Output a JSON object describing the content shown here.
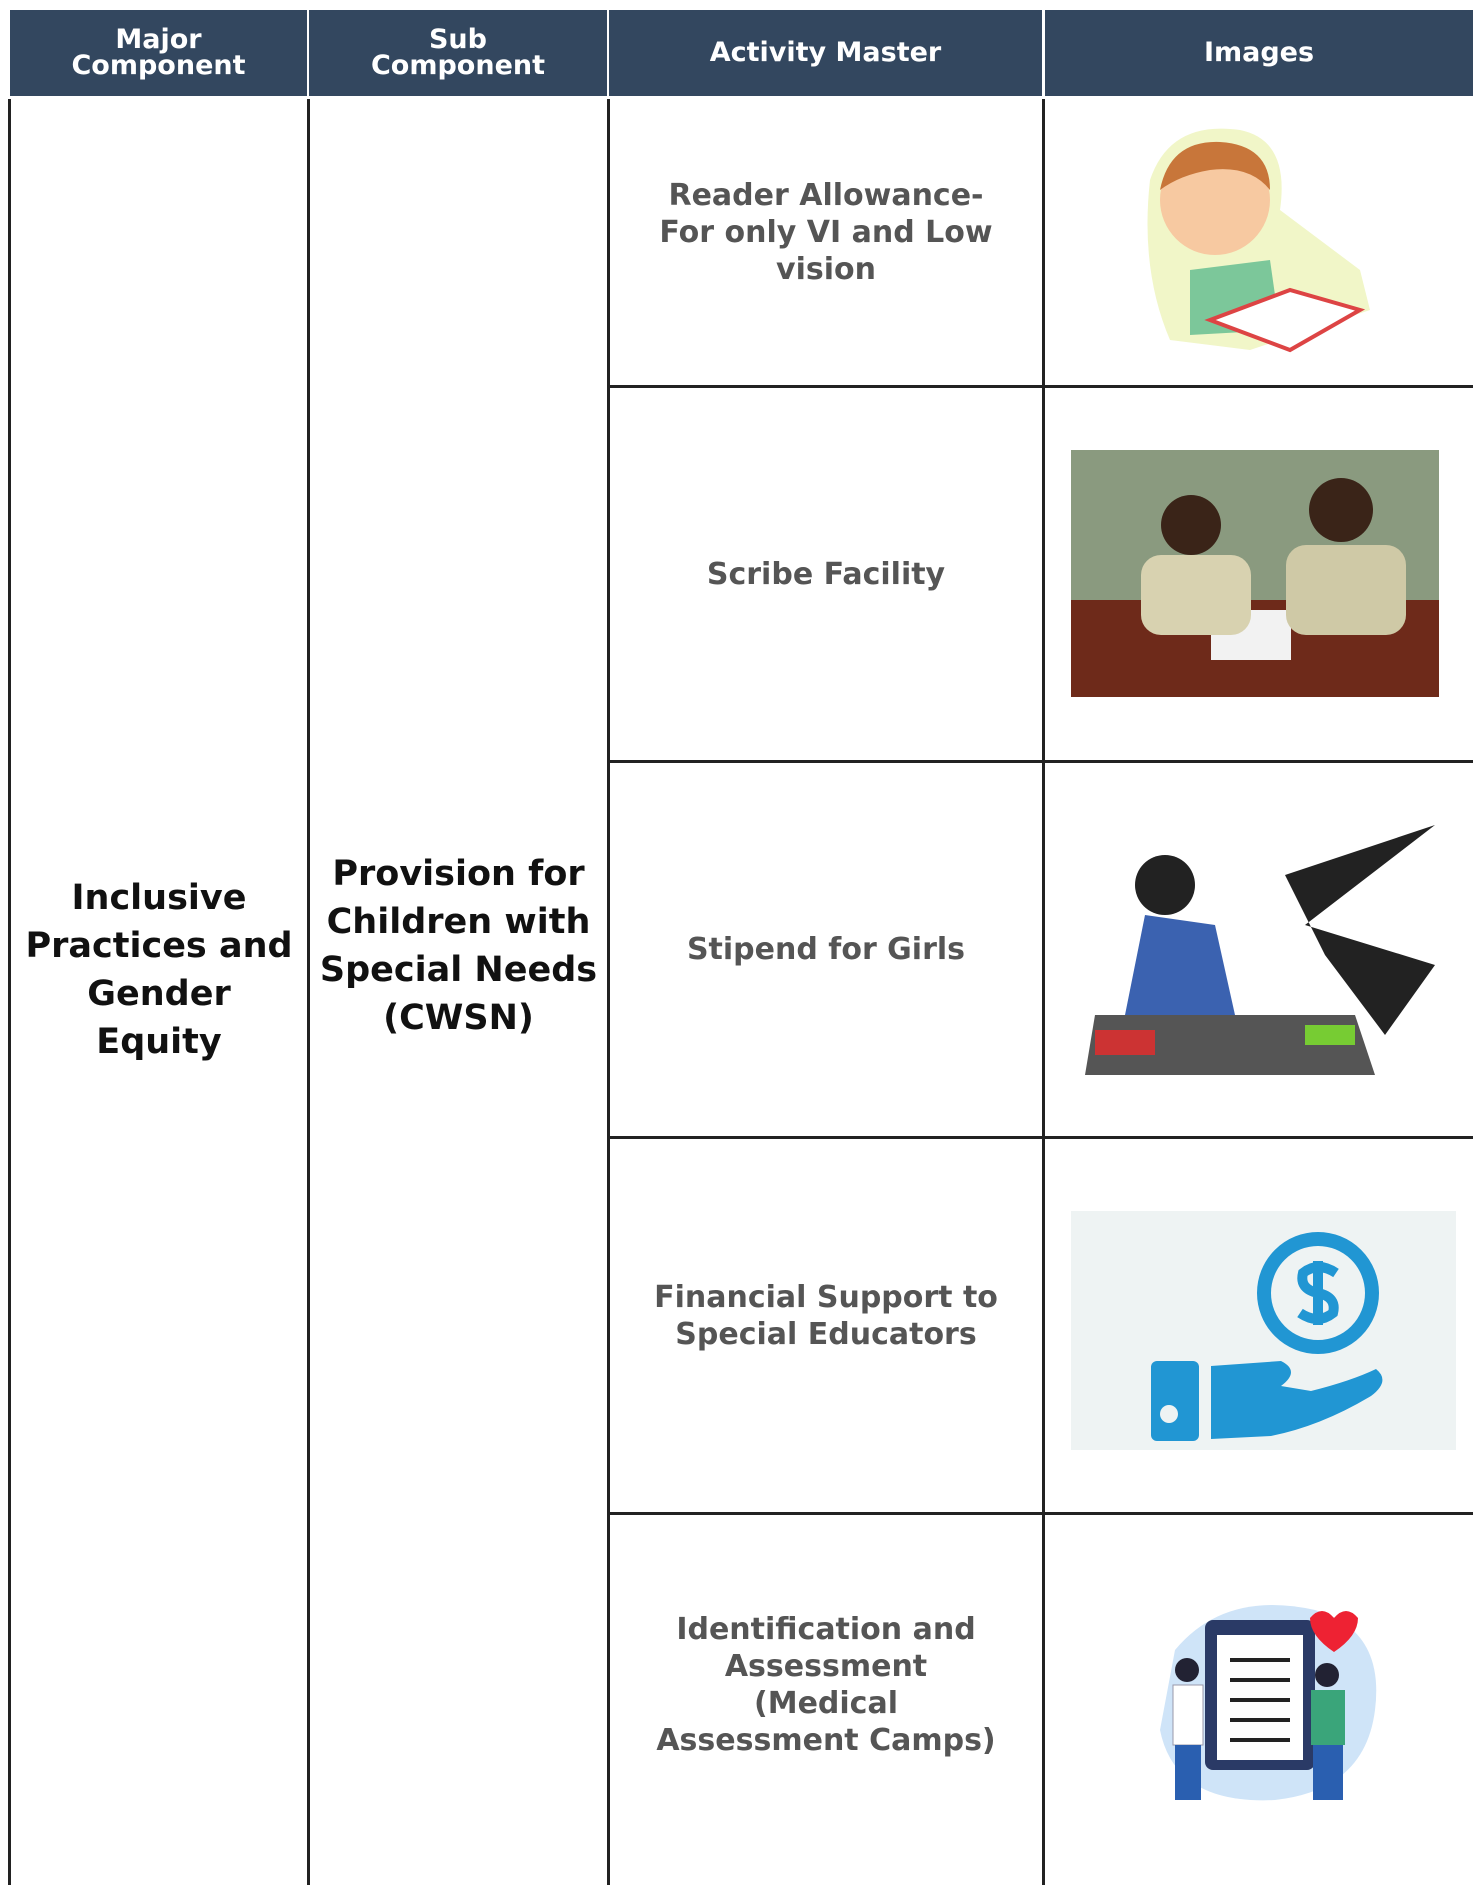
{
  "table": {
    "headers": [
      "Major\nComponent",
      "Sub\nComponent",
      "Activity Master",
      "Images"
    ],
    "major_component": "Inclusive Practices and Gender Equity",
    "sub_component": "Provision for Children with Special Needs (CWSN)",
    "activities": [
      "Reader Allowance- For only VI and Low vision",
      "Scribe Facility",
      "Stipend for Girls",
      "Financial Support to Special Educators",
      "Identification and Assessment (Medical Assessment Camps)"
    ]
  }
}
